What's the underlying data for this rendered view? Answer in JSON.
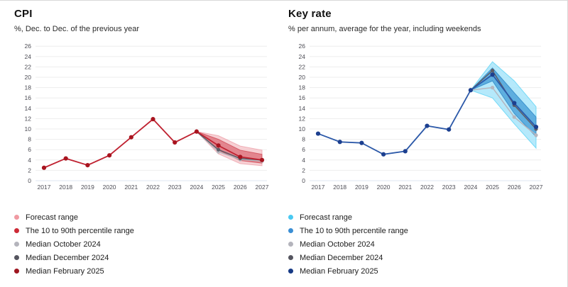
{
  "page": {
    "background": "#ffffff",
    "frame_border": "#d9d9d9",
    "gridline_color": "#ededed",
    "baseline_color": "#dce6f1",
    "tick_label_color": "#4d4d55"
  },
  "chart_data": [
    {
      "type": "line",
      "title": "CPI",
      "subtitle": "%, Dec. to Dec. of the previous year",
      "x": [
        2017,
        2018,
        2019,
        2020,
        2021,
        2022,
        2023,
        2024,
        2025,
        2026,
        2027
      ],
      "xlabel": "",
      "ylabel": "",
      "ylim": [
        0,
        26
      ],
      "yticks": [
        0,
        2,
        4,
        6,
        8,
        10,
        12,
        14,
        16,
        18,
        20,
        22,
        24,
        26
      ],
      "grid": true,
      "legend_position": "bottom-left",
      "bands": [
        {
          "name": "Forecast range",
          "x_start": 2024,
          "lo": [
            9.5,
            5.2,
            3.3,
            2.9
          ],
          "hi": [
            9.5,
            8.7,
            6.7,
            5.9
          ],
          "fill": "#f3bcc2",
          "opacity": 0.7,
          "stroke": "#eda2ab"
        },
        {
          "name": "The 10 to 90th percentile range",
          "x_start": 2024,
          "lo": [
            9.5,
            5.9,
            3.9,
            3.4
          ],
          "hi": [
            9.5,
            8.0,
            5.9,
            5.1
          ],
          "fill": "#d5545f",
          "opacity": 0.6,
          "stroke": "#cf4a56"
        }
      ],
      "series": [
        {
          "name": "Median October 2024",
          "x_start": 2024,
          "values": [
            9.5,
            5.6,
            4.1,
            3.8
          ],
          "color": "#b6b6be",
          "width": 1.5,
          "marker_r": 2.6
        },
        {
          "name": "Median December 2024",
          "x_start": 2024,
          "values": [
            9.5,
            6.0,
            4.3,
            4.0
          ],
          "color": "#5d5d67",
          "width": 1.5,
          "marker_r": 2.6
        },
        {
          "name": "Median February 2025",
          "x_start": 2017,
          "values": [
            2.5,
            4.3,
            3.0,
            4.9,
            8.4,
            11.9,
            7.4,
            9.5,
            6.8,
            4.6,
            4.0
          ],
          "color": "#bf2130",
          "marker_color": "#a8141f",
          "width": 1.8,
          "marker_r": 3.1
        }
      ],
      "legend": [
        {
          "label": "Forecast range",
          "color": "#f09aa2"
        },
        {
          "label": "The 10 to 90th percentile range",
          "color": "#cd2a36"
        },
        {
          "label": "Median October 2024",
          "color": "#b4b4bc"
        },
        {
          "label": "Median December 2024",
          "color": "#55555f"
        },
        {
          "label": "Median February 2025",
          "color": "#9e1620"
        }
      ]
    },
    {
      "type": "line",
      "title": "Key rate",
      "subtitle": "% per annum, average for the year, including weekends",
      "x": [
        2017,
        2018,
        2019,
        2020,
        2021,
        2022,
        2023,
        2024,
        2025,
        2026,
        2027
      ],
      "xlabel": "",
      "ylabel": "",
      "ylim": [
        0,
        26
      ],
      "yticks": [
        0,
        2,
        4,
        6,
        8,
        10,
        12,
        14,
        16,
        18,
        20,
        22,
        24,
        26
      ],
      "grid": true,
      "legend_position": "bottom-left",
      "bands": [
        {
          "name": "Forecast range",
          "x_start": 2024,
          "lo": [
            17.5,
            16.0,
            11.0,
            6.3
          ],
          "hi": [
            17.5,
            23.0,
            19.3,
            14.3
          ],
          "fill": "#a2e4fa",
          "opacity": 0.8,
          "stroke": "#5cd3f5"
        },
        {
          "name": "The 10 to 90th percentile range",
          "x_start": 2024,
          "lo": [
            17.5,
            19.3,
            13.0,
            8.5
          ],
          "hi": [
            17.5,
            21.8,
            17.0,
            12.3
          ],
          "fill": "#2f8fd0",
          "opacity": 0.65,
          "stroke": "#2b86c6"
        }
      ],
      "series": [
        {
          "name": "Median October 2024",
          "x_start": 2024,
          "values": [
            17.5,
            18.0,
            12.3,
            8.8
          ],
          "color": "#b6b6be",
          "width": 1.5,
          "marker_r": 2.6
        },
        {
          "name": "Median December 2024",
          "x_start": 2024,
          "values": [
            17.5,
            21.3,
            14.6,
            10.0
          ],
          "color": "#5d5d67",
          "width": 1.5,
          "marker_r": 2.6
        },
        {
          "name": "Median February 2025",
          "x_start": 2017,
          "values": [
            9.1,
            7.5,
            7.3,
            5.1,
            5.7,
            10.6,
            9.9,
            17.5,
            20.5,
            15.0,
            10.4
          ],
          "color": "#2b58a8",
          "marker_color": "#1c3f8f",
          "width": 1.8,
          "marker_r": 3.1
        }
      ],
      "legend": [
        {
          "label": "Forecast range",
          "color": "#49c9f2"
        },
        {
          "label": "The 10 to 90th percentile range",
          "color": "#3a8ed4"
        },
        {
          "label": "Median October 2024",
          "color": "#b4b4bc"
        },
        {
          "label": "Median December 2024",
          "color": "#55555f"
        },
        {
          "label": "Median February 2025",
          "color": "#173a85"
        }
      ]
    }
  ]
}
